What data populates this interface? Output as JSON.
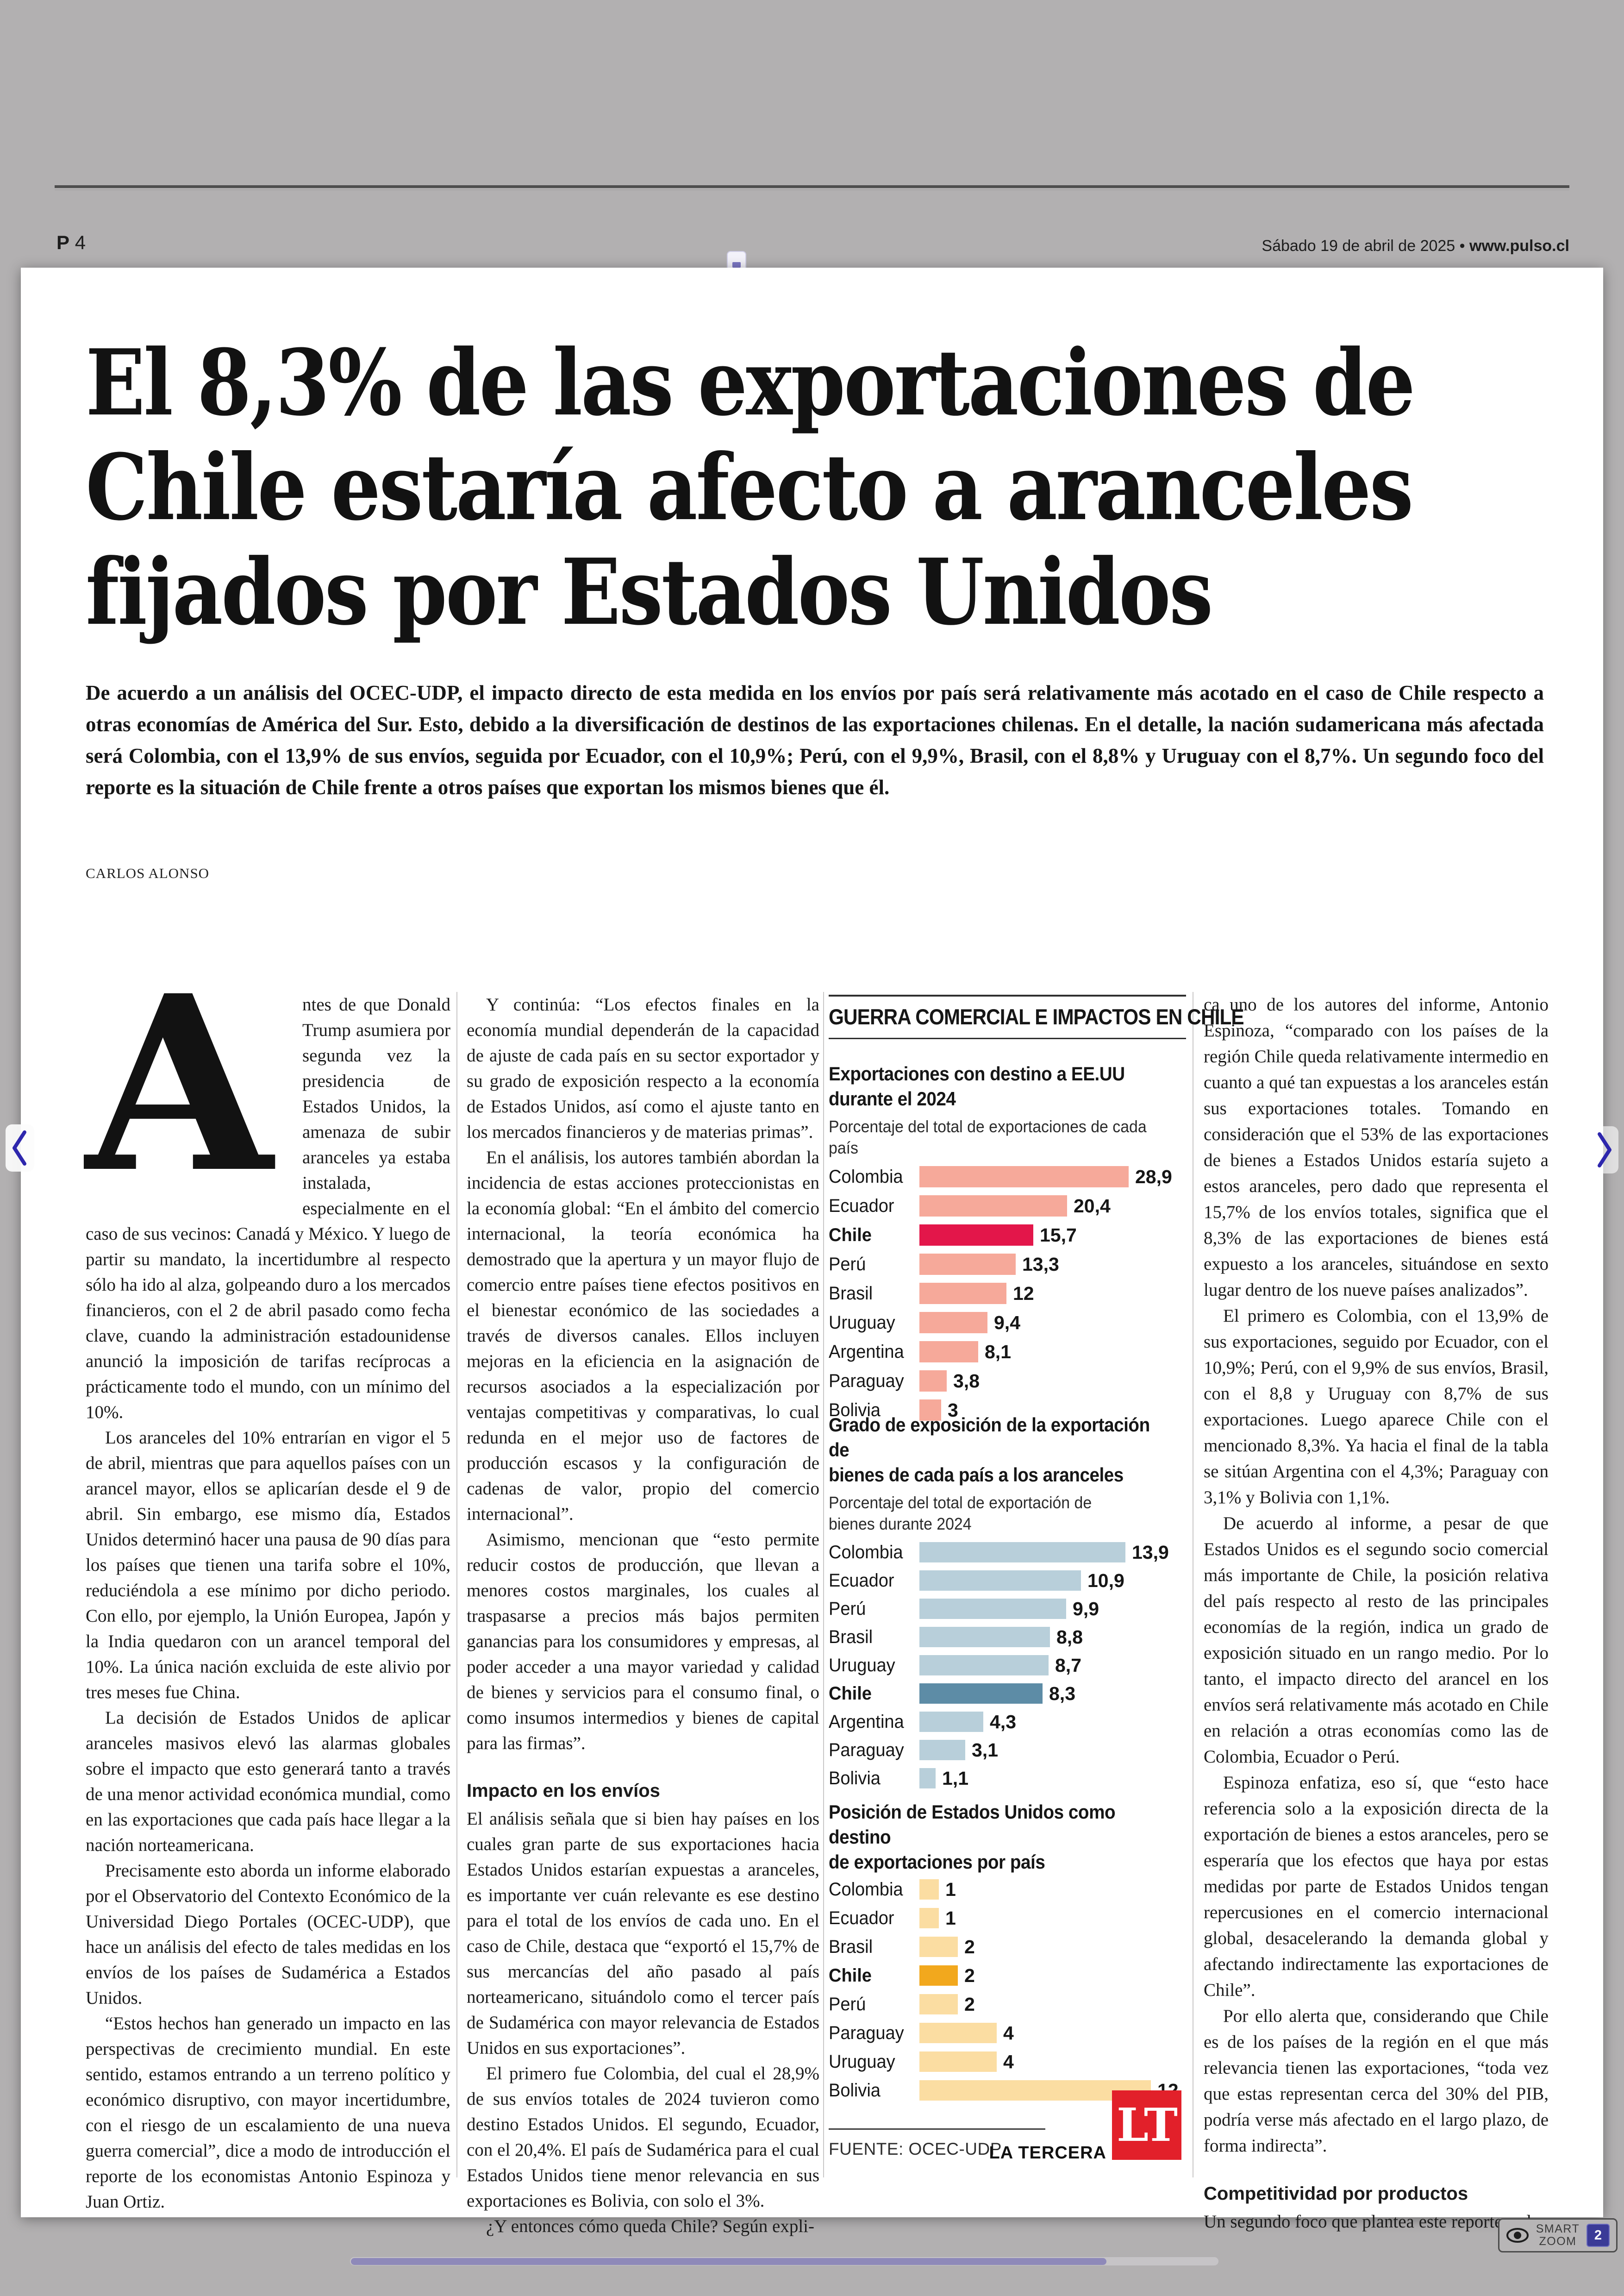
{
  "viewer": {
    "page_label_bold": "P",
    "page_label_num": "4",
    "date_line": "Sábado 19 de abril de 2025",
    "separator": " • ",
    "site_url": "www.pulso.cl",
    "smart_zoom": {
      "line1": "SMART",
      "line2": "ZOOM",
      "badge": "2"
    }
  },
  "article": {
    "headline_lines": [
      "El 8,3% de las exportaciones de",
      "Chile estaría afecto a aranceles",
      "fijados por Estados Unidos"
    ],
    "lede": "De acuerdo a un análisis del OCEC-UDP, el impacto directo de esta medida en los envíos por país será relativamente más acotado en el caso de Chile respecto a otras economías de América del Sur. Esto, debido a la diversificación de destinos de las exportaciones chilenas. En el detalle, la nación sudamericana más afectada será Colombia, con el 13,9% de sus envíos, seguida por Ecuador, con el 10,9%; Perú, con el 9,9%, Brasil, con el 8,8% y Uruguay con el 8,7%. Un segundo foco del reporte es la situación de Chile frente a otros países que exportan los mismos bienes que él.",
    "byline": "CARLOS ALONSO",
    "drop_cap": "A",
    "columns": [
      {
        "id": "col1",
        "blocks": [
          {
            "type": "p-dropcap",
            "text": "ntes de que Donald Trump asumiera por segunda vez la presidencia de Estados Unidos, la amenaza de subir aranceles ya estaba instalada, especialmente en el caso de sus vecinos: Canadá y México. Y luego de partir su mandato, la incertidumbre al respecto sólo ha ido al alza, golpeando duro a los mercados financieros, con el 2 de abril pasado como fecha clave, cuando la administración estadounidense anunció la imposición de tarifas recíprocas a prácticamente todo el mundo, con un mínimo del 10%."
          },
          {
            "type": "p",
            "text": "Los aranceles del 10% entrarían en vigor el 5 de abril, mientras que para aquellos países con un arancel mayor, ellos se aplicarían desde el 9 de abril. Sin embargo, ese mismo día, Estados Unidos determinó hacer una pausa de 90 días para los países que tienen una tarifa sobre el 10%, reduciéndola a ese mínimo por dicho periodo. Con ello, por ejemplo, la Unión Europea, Japón y la India quedaron con un arancel temporal del 10%. La única nación excluida de este alivio por tres meses fue China."
          },
          {
            "type": "p",
            "text": "La decisión de Estados Unidos de aplicar aranceles masivos elevó las alarmas globales sobre el impacto que esto generará tanto a través de una menor actividad económica mundial, como en las exportaciones que cada país hace llegar a la nación norteamericana."
          },
          {
            "type": "p",
            "text": "Precisamente esto aborda un informe elaborado por el Observatorio del Contexto Económico de la Universidad Diego Portales (OCEC-UDP), que hace un análisis del efecto de tales medidas en los envíos de los países de Sudamérica a Estados Unidos."
          },
          {
            "type": "p",
            "text": "“Estos hechos han generado un impacto en las perspectivas de crecimiento mundial. En este sentido, estamos entrando a un terreno político y económico disruptivo, con mayor incertidumbre, con el riesgo de un escalamiento de una nueva guerra comercial”, dice a modo de introducción el reporte de los economistas Antonio Espinoza y Juan Ortiz."
          }
        ]
      },
      {
        "id": "col2",
        "blocks": [
          {
            "type": "p",
            "text": "Y continúa: “Los efectos finales en la economía mundial dependerán de la capacidad de ajuste de cada país en su sector exportador y su grado de exposición respecto a la economía de Estados Unidos, así como el ajuste tanto en los mercados financieros y de materias primas”."
          },
          {
            "type": "p",
            "text": "En el análisis, los autores también abordan la incidencia de estas acciones proteccionistas en la economía global: “En el ámbito del comercio internacional, la teoría económica ha demostrado que la apertura y un mayor flujo de comercio entre países tiene efectos positivos en el bienestar económico de las sociedades a través de diversos canales. Ellos incluyen mejoras en la eficiencia en la asignación de recursos asociados a la especialización por ventajas competitivas y comparativas, lo cual redunda en el mejor uso de factores de producción escasos y la configuración de cadenas de valor, propio del comercio internacional”."
          },
          {
            "type": "p",
            "text": "Asimismo, mencionan que “esto permite reducir costos de producción, que llevan a menores costos marginales, los cuales al traspasarse a precios más bajos permiten ganancias para los consumidores y empresas, al poder acceder a una mayor variedad y calidad de bienes y servicios para el consumo final, o como insumos intermedios y bienes de capital para las firmas”."
          },
          {
            "type": "subhead",
            "text": "Impacto en los envíos"
          },
          {
            "type": "p-ni",
            "text": "El análisis señala que si bien hay países en los cuales gran parte de sus exportaciones hacia Estados Unidos estarían expuestas a aranceles, es importante ver cuán relevante es ese destino para el total de los envíos de cada uno. En el caso de Chile, destaca que “exportó el 15,7% de sus mercancías del año pasado al país norteamericano, situándolo como el tercer país de Sudamérica con mayor relevancia de Estados Unidos en sus exportaciones”."
          },
          {
            "type": "p",
            "text": "El primero fue Colombia, del cual el 28,9% de sus envíos totales de 2024 tuvieron como destino Estados Unidos. El segundo, Ecuador, con el 20,4%. El país de Sudamérica para el cual Estados Unidos tiene menor relevancia en sus exportaciones es Bolivia, con solo el 3%."
          },
          {
            "type": "p",
            "text": "¿Y entonces cómo queda Chile? Según expli-"
          }
        ]
      },
      {
        "id": "col4",
        "blocks": [
          {
            "type": "p-ni",
            "text": "ca uno de los autores del informe, Antonio Espinoza, “comparado con los países de la región Chile queda relativamente intermedio en cuanto a qué tan expuestas a los aranceles están sus exportaciones totales. Tomando en consideración que el 53% de las exportaciones de bienes a Estados Unidos estaría sujeto a estos aranceles, pero dado que representa el 15,7% de los envíos totales, significa que el 8,3% de las exportaciones de bienes está expuesto a los aranceles, situándose en sexto lugar dentro de los nueve países analizados”."
          },
          {
            "type": "p",
            "text": "El primero es Colombia, con el 13,9% de sus exportaciones, seguido por Ecuador, con el 10,9%; Perú, con el 9,9% de sus envíos, Brasil, con el 8,8 y Uruguay con 8,7% de sus exportaciones. Luego aparece Chile con el mencionado 8,3%. Ya hacia el final de la tabla se sitúan Argentina con el 4,3%; Paraguay con 3,1% y Bolivia con 1,1%."
          },
          {
            "type": "p",
            "text": "De acuerdo al informe, a pesar de que Estados Unidos es el segundo socio comercial más importante de Chile, la posición relativa del país respecto al resto de las principales economías de la región, indica un grado de exposición situado en un rango medio. Por lo tanto, el impacto directo del arancel en los envíos será relativamente más acotado en Chile en relación a otras economías como las de Colombia, Ecuador o Perú."
          },
          {
            "type": "p",
            "text": "Espinoza enfatiza, eso sí, que “esto hace referencia solo a la exposición directa de la exportación de bienes a estos aranceles, pero se esperaría que los efectos que haya por estas medidas por parte de Estados Unidos tengan repercusiones en el comercio internacional global, desacelerando la demanda global y afectando indirectamente las exportaciones de Chile”."
          },
          {
            "type": "p",
            "text": "Por ello alerta que, considerando que Chile es de los países de la región en el que más relevancia tienen las exportaciones, “toda vez que estas representan cerca del 30% del PIB, podría verse más afectado en el largo plazo, de forma indirecta”."
          },
          {
            "type": "subhead",
            "text": "Competitividad por productos"
          },
          {
            "type": "p-ni",
            "text": "Un segundo foco que plantea este reporte es la"
          }
        ]
      }
    ]
  },
  "infographic": {
    "header": "GUERRA COMERCIAL E IMPACTOS EN CHILE",
    "source": "FUENTE: OCEC-UDP",
    "credit": "LA TERCERA",
    "logo_text": "LT",
    "logo_color": "#e2202a"
  },
  "chart_data": [
    {
      "type": "bar",
      "orientation": "horizontal",
      "title": "Exportaciones con destino a EE.UU\ndurante el 2024",
      "subtitle": "Porcentaje del total de exportaciones de cada país",
      "categories": [
        "Colombia",
        "Ecuador",
        "Chile",
        "Perú",
        "Brasil",
        "Uruguay",
        "Argentina",
        "Paraguay",
        "Bolivia"
      ],
      "values": [
        28.9,
        20.4,
        15.7,
        13.3,
        12,
        9.4,
        8.1,
        3.8,
        3
      ],
      "value_labels": [
        "28,9",
        "20,4",
        "15,7",
        "13,3",
        "12",
        "9,4",
        "8,1",
        "3,8",
        "3"
      ],
      "max_value": 28.9,
      "highlight": "Chile",
      "bar_color": "#f6a99a",
      "highlight_color": "#e3164a",
      "grid": false,
      "legend": "none"
    },
    {
      "type": "bar",
      "orientation": "horizontal",
      "title": "Grado de exposición de la exportación de\nbienes de cada país a los aranceles",
      "subtitle": "Porcentaje del total de exportación de\nbienes durante 2024",
      "categories": [
        "Colombia",
        "Ecuador",
        "Perú",
        "Brasil",
        "Uruguay",
        "Chile",
        "Argentina",
        "Paraguay",
        "Bolivia"
      ],
      "values": [
        13.9,
        10.9,
        9.9,
        8.8,
        8.7,
        8.3,
        4.3,
        3.1,
        1.1
      ],
      "value_labels": [
        "13,9",
        "10,9",
        "9,9",
        "8,8",
        "8,7",
        "8,3",
        "4,3",
        "3,1",
        "1,1"
      ],
      "max_value": 13.9,
      "highlight": "Chile",
      "bar_color": "#b8cfda",
      "highlight_color": "#5d8ca6",
      "grid": false,
      "legend": "none"
    },
    {
      "type": "bar",
      "orientation": "horizontal",
      "title": "Posición de Estados Unidos como destino\nde exportaciones por país",
      "subtitle": "",
      "categories": [
        "Colombia",
        "Ecuador",
        "Brasil",
        "Chile",
        "Perú",
        "Paraguay",
        "Uruguay",
        "Bolivia"
      ],
      "values": [
        1,
        1,
        2,
        2,
        2,
        4,
        4,
        12
      ],
      "value_labels": [
        "1",
        "1",
        "2",
        "2",
        "2",
        "4",
        "4",
        "12"
      ],
      "max_value": 12,
      "highlight": "Chile",
      "bar_color": "#fbdda2",
      "highlight_color": "#f2a81d",
      "grid": false,
      "legend": "none"
    }
  ]
}
